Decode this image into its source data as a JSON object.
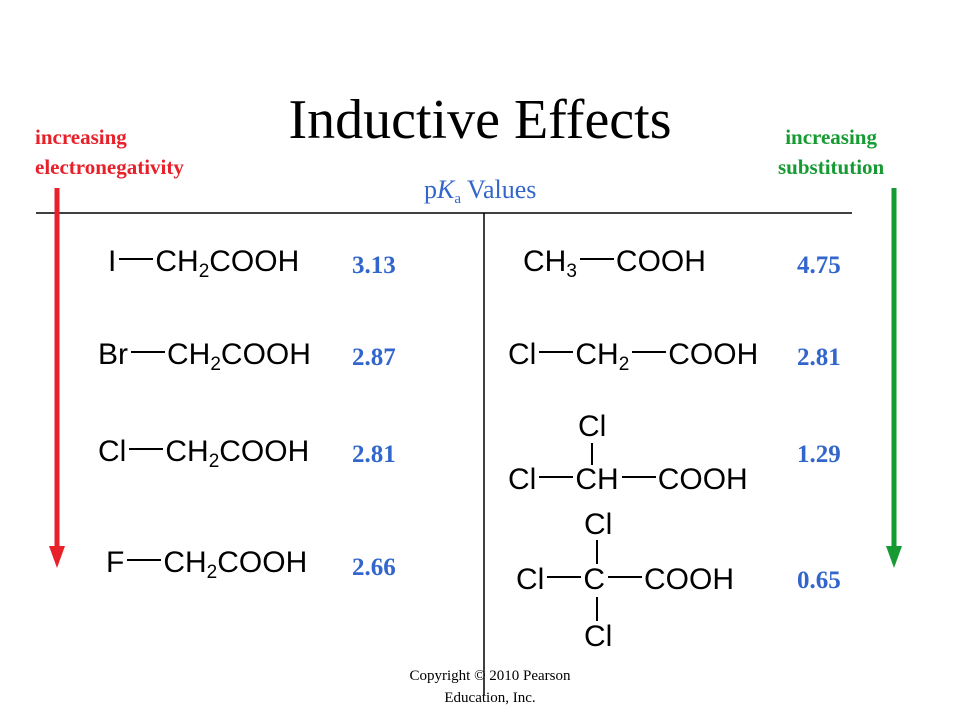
{
  "title": "Inductive Effects",
  "subtitle": {
    "p": "p",
    "K": "K",
    "sub": "a",
    "rest": " Values"
  },
  "left_label": {
    "line1": "increasing",
    "line2": "electronegativity",
    "color": "#e8202a"
  },
  "right_label": {
    "line1": "increasing",
    "line2": "substitution",
    "color": "#169a32"
  },
  "value_color": "#3366cc",
  "left_series": [
    {
      "halogen": "I",
      "chain": "CH",
      "sub": "2",
      "acid": "COOH",
      "pka": "3.13"
    },
    {
      "halogen": "Br",
      "chain": "CH",
      "sub": "2",
      "acid": "COOH",
      "pka": "2.87"
    },
    {
      "halogen": "Cl",
      "chain": "CH",
      "sub": "2",
      "acid": "COOH",
      "pka": "2.81"
    },
    {
      "halogen": "F",
      "chain": "CH",
      "sub": "2",
      "acid": "COOH",
      "pka": "2.66"
    }
  ],
  "right_series": [
    {
      "group": "CH",
      "sub": "3",
      "acid": "COOH",
      "pka": "4.75"
    },
    {
      "cl": "Cl",
      "group": "CH",
      "sub": "2",
      "acid": "COOH",
      "pka": "2.81"
    },
    {
      "cl_top": "Cl",
      "cl": "Cl",
      "group": "CH",
      "acid": "COOH",
      "pka": "1.29"
    },
    {
      "cl_top": "Cl",
      "cl": "Cl",
      "group": "C",
      "cl_bottom": "Cl",
      "acid": "COOH",
      "pka": "0.65"
    }
  ],
  "copyright": {
    "line1": "Copyright © 2010 Pearson",
    "line2": "Education, Inc."
  }
}
